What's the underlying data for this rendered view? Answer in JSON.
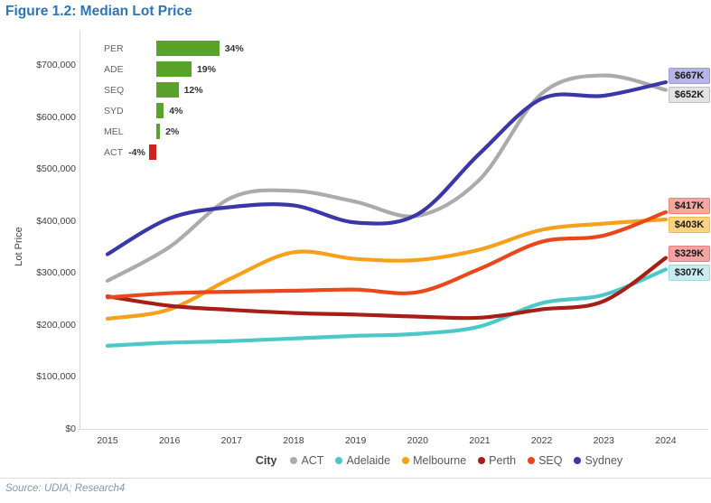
{
  "title": "Figure 1.2: Median Lot Price",
  "source": "Source: UDIA; Research4",
  "chart_data": {
    "type": "line",
    "title": "Median Lot Price",
    "xlabel": "",
    "ylabel": "Lot Price",
    "x": [
      2015,
      2016,
      2017,
      2018,
      2019,
      2020,
      2021,
      2022,
      2023,
      2024
    ],
    "ylim": [
      0,
      700000
    ],
    "y_tick_values": [
      0,
      100000,
      200000,
      300000,
      400000,
      500000,
      600000,
      700000
    ],
    "y_tick_labels": [
      "$0",
      "$100,000",
      "$200,000",
      "$300,000",
      "$400,000",
      "$500,000",
      "$600,000",
      "$700,000"
    ],
    "grid": false,
    "legend_title": "City",
    "legend_position": "bottom",
    "series": [
      {
        "name": "ACT",
        "color": "#ABABAB",
        "values": [
          285000,
          350000,
          445000,
          458000,
          437000,
          410000,
          480000,
          645000,
          680000,
          652000
        ],
        "end_label": "$652K",
        "end_label_bg": "#E3E3E3",
        "end_label_border": "#BFBFBF"
      },
      {
        "name": "Adelaide",
        "color": "#4DC8C8",
        "values": [
          160000,
          166000,
          169000,
          174000,
          179000,
          183000,
          197000,
          242000,
          258000,
          307000
        ],
        "end_label": "$307K",
        "end_label_bg": "#C9ECF0",
        "end_label_border": "#9AD9E0"
      },
      {
        "name": "Melbourne",
        "color": "#F5A11B",
        "values": [
          212000,
          230000,
          290000,
          340000,
          327000,
          325000,
          345000,
          383000,
          395000,
          403000
        ],
        "end_label": "$403K",
        "end_label_bg": "#FBD27E",
        "end_label_border": "#EDB953"
      },
      {
        "name": "Perth",
        "color": "#A61F17",
        "values": [
          255000,
          237000,
          229000,
          223000,
          220000,
          216000,
          214000,
          230000,
          246000,
          329000
        ],
        "end_label": "$329K",
        "end_label_bg": "#F4A3A3",
        "end_label_border": "#E58080"
      },
      {
        "name": "SEQ",
        "color": "#E8481C",
        "values": [
          253000,
          261000,
          264000,
          266000,
          268000,
          263000,
          308000,
          360000,
          372000,
          417000
        ],
        "end_label": "$417K",
        "end_label_bg": "#F5A79E",
        "end_label_border": "#EC8576"
      },
      {
        "name": "Sydney",
        "color": "#3938A6",
        "values": [
          336000,
          405000,
          427000,
          430000,
          397000,
          413000,
          530000,
          635000,
          641000,
          667000
        ],
        "end_label": "$667K",
        "end_label_bg": "#B7B5E8",
        "end_label_border": "#9C9AD8"
      }
    ],
    "inset": {
      "type": "bar",
      "orientation": "horizontal",
      "categories": [
        "PER",
        "ADE",
        "SEQ",
        "SYD",
        "MEL",
        "ACT"
      ],
      "values_pct": [
        34,
        19,
        12,
        4,
        2,
        -4
      ],
      "labels": [
        "34%",
        "19%",
        "12%",
        "4%",
        "2%",
        "-4%"
      ],
      "positive_color": "#5BA22B",
      "negative_color": "#CC261A"
    }
  }
}
